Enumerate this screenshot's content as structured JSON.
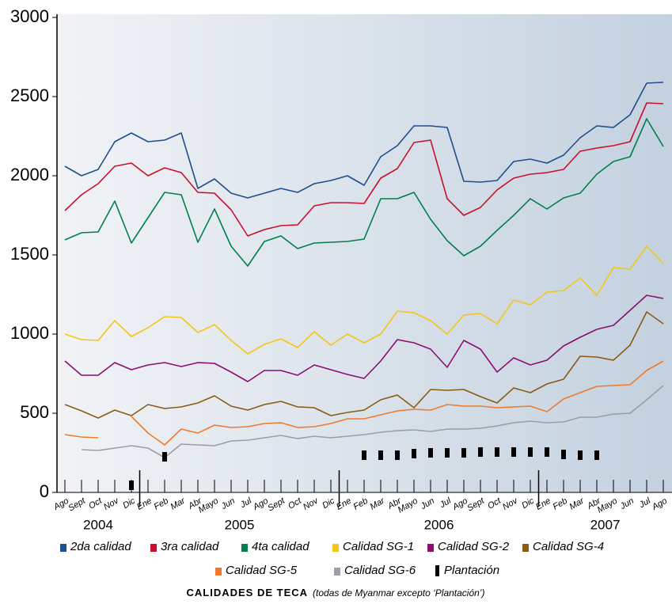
{
  "chart_data": {
    "type": "line",
    "title": "CALIDADES DE TECA",
    "subtitle": "(todas de Myanmar excepto ‘Plantación’)",
    "categories": [
      "Ago",
      "Sept",
      "Oct",
      "Nov",
      "Dic",
      "Ene",
      "Feb",
      "Mar",
      "Abr",
      "Mayo",
      "Jun",
      "Jul",
      "Ago",
      "Sept",
      "Oct",
      "Nov",
      "Dic",
      "Ene",
      "Feb",
      "Mar",
      "Abr",
      "Mayo",
      "Jun",
      "Jul",
      "Ago",
      "Sept",
      "Oct",
      "Nov",
      "Dic",
      "Ene",
      "Feb",
      "Mar",
      "Abr",
      "Mayo",
      "Jun",
      "Jul",
      "Ago"
    ],
    "groups": [
      "2004",
      "2005",
      "2006",
      "2007"
    ],
    "ylim": [
      0,
      3000
    ],
    "yticks": [
      0,
      500,
      1000,
      1500,
      2000,
      2500,
      3000
    ],
    "series": [
      {
        "name": "2da calidad",
        "color": "#1f4e8c",
        "values": [
          2060,
          2000,
          2040,
          2215,
          2270,
          2215,
          2225,
          2270,
          1920,
          1980,
          1890,
          1860,
          1890,
          1920,
          1895,
          1950,
          1970,
          2000,
          1940,
          2120,
          2190,
          2315,
          2315,
          2305,
          1965,
          1960,
          1970,
          2090,
          2105,
          2080,
          2130,
          2240,
          2315,
          2305,
          2385,
          2585,
          2590
        ]
      },
      {
        "name": "3ra calidad",
        "color": "#c8102e",
        "values": [
          1780,
          1880,
          1950,
          2060,
          2080,
          2000,
          2050,
          2020,
          1895,
          1890,
          1785,
          1620,
          1660,
          1685,
          1690,
          1810,
          1830,
          1830,
          1825,
          1985,
          2045,
          2210,
          2225,
          1855,
          1750,
          1800,
          1910,
          1985,
          2010,
          2020,
          2040,
          2155,
          2175,
          2190,
          2215,
          2460,
          2455
        ]
      },
      {
        "name": "4ta calidad",
        "color": "#00804a",
        "values": [
          1595,
          1640,
          1645,
          1840,
          1575,
          1735,
          1895,
          1880,
          1580,
          1790,
          1555,
          1430,
          1585,
          1620,
          1540,
          1575,
          1580,
          1585,
          1600,
          1855,
          1855,
          1895,
          1725,
          1590,
          1495,
          1555,
          1655,
          1750,
          1855,
          1790,
          1860,
          1890,
          2010,
          2090,
          2120,
          2360,
          2185
        ]
      },
      {
        "name": "Calidad SG-1",
        "color": "#f5c518",
        "values": [
          1000,
          965,
          960,
          1085,
          985,
          1040,
          1110,
          1105,
          1010,
          1060,
          960,
          875,
          935,
          970,
          915,
          1015,
          930,
          1000,
          945,
          1000,
          1145,
          1135,
          1085,
          1000,
          1120,
          1130,
          1065,
          1215,
          1185,
          1265,
          1275,
          1355,
          1245,
          1420,
          1410,
          1555,
          1445
        ]
      },
      {
        "name": "Calidad SG-2",
        "color": "#8b0f6e",
        "values": [
          830,
          740,
          740,
          820,
          775,
          805,
          820,
          795,
          820,
          815,
          760,
          700,
          770,
          770,
          740,
          805,
          775,
          745,
          720,
          830,
          965,
          945,
          905,
          790,
          960,
          905,
          760,
          850,
          805,
          835,
          925,
          980,
          1030,
          1055,
          1150,
          1245,
          1225
        ]
      },
      {
        "name": "Calidad SG-4",
        "color": "#8b5a14",
        "values": [
          555,
          515,
          470,
          520,
          485,
          555,
          530,
          540,
          565,
          610,
          545,
          520,
          555,
          575,
          540,
          535,
          485,
          505,
          520,
          585,
          615,
          535,
          650,
          645,
          650,
          605,
          565,
          660,
          630,
          685,
          715,
          860,
          855,
          835,
          930,
          1140,
          1065
        ]
      },
      {
        "name": "Calidad SG-5",
        "color": "#f07a2c",
        "values": [
          365,
          350,
          345,
          null,
          480,
          375,
          300,
          400,
          375,
          425,
          410,
          415,
          435,
          440,
          410,
          415,
          435,
          465,
          465,
          490,
          515,
          525,
          520,
          555,
          545,
          545,
          535,
          540,
          545,
          510,
          590,
          630,
          670,
          675,
          680,
          770,
          830
        ]
      },
      {
        "name": "Calidad SG-6",
        "color": "#9a9ea6",
        "values": [
          null,
          270,
          265,
          280,
          295,
          280,
          220,
          305,
          300,
          295,
          325,
          330,
          345,
          360,
          340,
          355,
          345,
          355,
          365,
          380,
          390,
          395,
          385,
          400,
          400,
          405,
          420,
          440,
          450,
          440,
          445,
          475,
          475,
          495,
          500,
          585,
          675
        ]
      },
      {
        "name": "Plantación",
        "color": "#000000",
        "marker": "bar",
        "values": [
          null,
          null,
          null,
          null,
          45,
          null,
          225,
          null,
          null,
          null,
          null,
          null,
          null,
          null,
          null,
          null,
          null,
          null,
          235,
          235,
          235,
          245,
          250,
          250,
          250,
          255,
          255,
          255,
          255,
          255,
          240,
          235,
          235,
          null,
          null,
          null,
          null
        ]
      }
    ]
  }
}
